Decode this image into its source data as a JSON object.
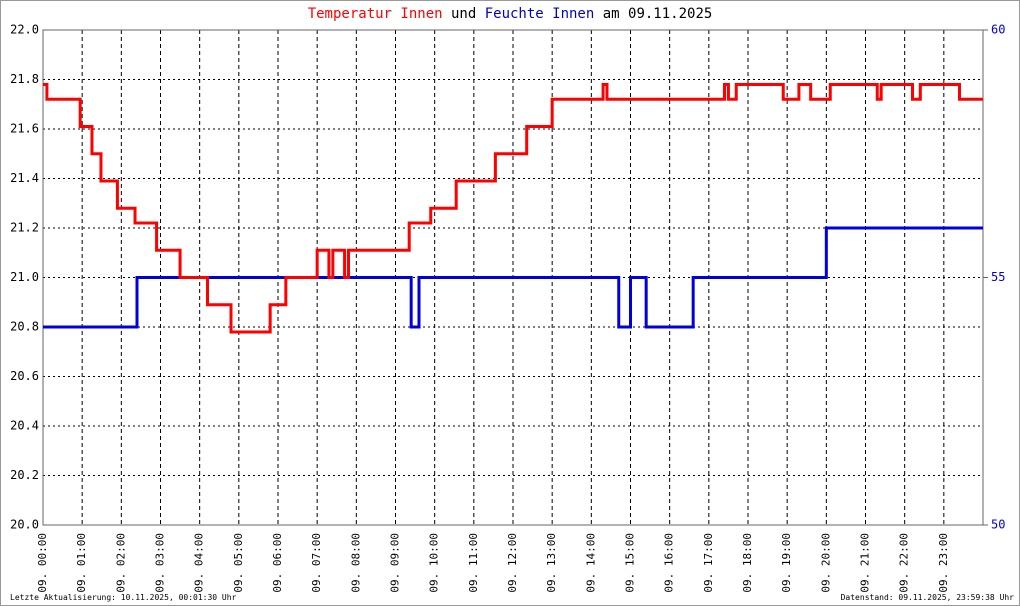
{
  "chart_data": {
    "type": "line",
    "title": [
      {
        "text": "Temperatur Innen",
        "color": "#ff0000"
      },
      {
        "text": "und",
        "color": "#000000"
      },
      {
        "text": "Feuchte Innen",
        "color": "#0000cc"
      },
      {
        "text": "am 09.11.2025",
        "color": "#000000"
      }
    ],
    "footer_left": "Letzte Aktualisierung: 10.11.2025, 00:01:30 Uhr",
    "footer_right": "Datenstand: 09.11.2025, 23:59:38 Uhr",
    "xlim": [
      0,
      24
    ],
    "xticks": [
      {
        "value": 0,
        "label": "09. 00:00"
      },
      {
        "value": 1,
        "label": "09. 01:00"
      },
      {
        "value": 2,
        "label": "09. 02:00"
      },
      {
        "value": 3,
        "label": "09. 03:00"
      },
      {
        "value": 4,
        "label": "09. 04:00"
      },
      {
        "value": 5,
        "label": "09. 05:00"
      },
      {
        "value": 6,
        "label": "09. 06:00"
      },
      {
        "value": 7,
        "label": "09. 07:00"
      },
      {
        "value": 8,
        "label": "09. 08:00"
      },
      {
        "value": 9,
        "label": "09. 09:00"
      },
      {
        "value": 10,
        "label": "09. 10:00"
      },
      {
        "value": 11,
        "label": "09. 11:00"
      },
      {
        "value": 12,
        "label": "09. 12:00"
      },
      {
        "value": 13,
        "label": "09. 13:00"
      },
      {
        "value": 14,
        "label": "09. 14:00"
      },
      {
        "value": 15,
        "label": "09. 15:00"
      },
      {
        "value": 16,
        "label": "09. 16:00"
      },
      {
        "value": 17,
        "label": "09. 17:00"
      },
      {
        "value": 18,
        "label": "09. 18:00"
      },
      {
        "value": 19,
        "label": "09. 19:00"
      },
      {
        "value": 20,
        "label": "09. 20:00"
      },
      {
        "value": 21,
        "label": "09. 21:00"
      },
      {
        "value": 22,
        "label": "09. 22:00"
      },
      {
        "value": 23,
        "label": "09. 23:00"
      }
    ],
    "ylim": [
      20,
      22
    ],
    "yticks": [
      {
        "value": 20,
        "label": "20.0"
      },
      20.2,
      20.4,
      20.6,
      20.8,
      {
        "value": 21,
        "label": "21.0"
      },
      21.2,
      21.4,
      21.6,
      21.8,
      {
        "value": 22,
        "label": "22.0"
      }
    ],
    "y2lim": [
      50,
      60
    ],
    "y2ticks": [
      50,
      55,
      60
    ],
    "grid": true,
    "series": [
      {
        "name": "Temperatur Innen",
        "color": "#ff0000",
        "x": [
          0,
          0.1,
          0.1,
          0.95,
          0.95,
          1.25,
          1.25,
          1.48,
          1.48,
          1.9,
          1.9,
          2.35,
          2.35,
          2.9,
          2.9,
          3.5,
          3.5,
          4.2,
          4.2,
          4.8,
          4.8,
          5.8,
          5.8,
          6.2,
          6.2,
          7.0,
          7.0,
          7.3,
          7.3,
          7.4,
          7.4,
          7.7,
          7.7,
          7.8,
          7.8,
          9.35,
          9.35,
          9.9,
          9.9,
          10.55,
          10.55,
          11.55,
          11.55,
          12.35,
          12.35,
          13.0,
          13.0,
          14.3,
          14.3,
          14.4,
          14.4,
          17.4,
          17.4,
          17.5,
          17.5,
          17.7,
          17.7,
          18.9,
          18.9,
          19.3,
          19.3,
          19.6,
          19.6,
          20.1,
          20.1,
          21.3,
          21.3,
          21.4,
          21.4,
          22.2,
          22.2,
          22.4,
          22.4,
          23.4,
          23.4,
          24
        ],
        "values": [
          21.78,
          21.78,
          21.72,
          21.72,
          21.61,
          21.61,
          21.5,
          21.5,
          21.39,
          21.39,
          21.28,
          21.28,
          21.22,
          21.22,
          21.11,
          21.11,
          21.0,
          21.0,
          20.89,
          20.89,
          20.78,
          20.78,
          20.89,
          20.89,
          21.0,
          21.0,
          21.11,
          21.11,
          21.0,
          21.0,
          21.11,
          21.11,
          21.0,
          21.0,
          21.11,
          21.11,
          21.22,
          21.22,
          21.28,
          21.28,
          21.39,
          21.39,
          21.5,
          21.5,
          21.61,
          21.61,
          21.72,
          21.72,
          21.78,
          21.78,
          21.72,
          21.72,
          21.78,
          21.78,
          21.72,
          21.72,
          21.78,
          21.78,
          21.72,
          21.72,
          21.78,
          21.78,
          21.72,
          21.72,
          21.78,
          21.78,
          21.72,
          21.72,
          21.78,
          21.78,
          21.72,
          21.72,
          21.78,
          21.78,
          21.72,
          21.72
        ]
      },
      {
        "name": "Feuchte Innen",
        "color": "#0000dd",
        "axis": "y2",
        "x": [
          0,
          2.4,
          2.4,
          9.4,
          9.4,
          9.6,
          9.6,
          14.7,
          14.7,
          15.0,
          15.0,
          15.4,
          15.4,
          16.6,
          16.6,
          20.0,
          20.0,
          24
        ],
        "values": [
          54,
          54,
          55,
          55,
          54,
          54,
          55,
          55,
          54,
          54,
          55,
          55,
          54,
          54,
          55,
          55,
          56,
          56
        ]
      }
    ]
  }
}
